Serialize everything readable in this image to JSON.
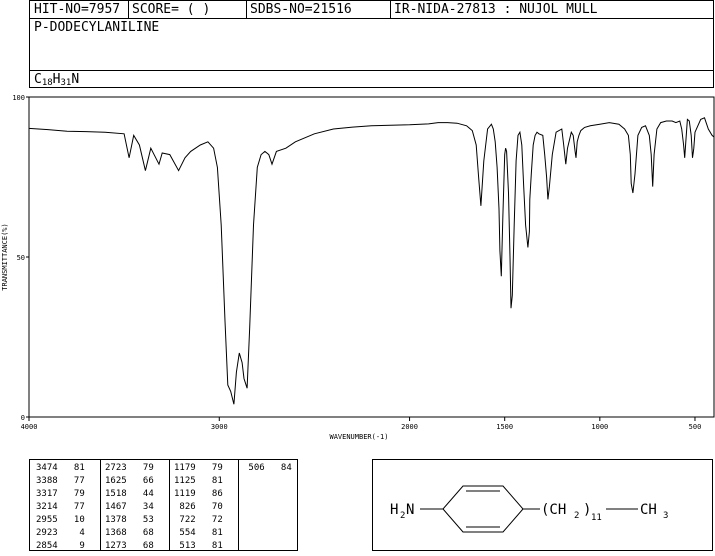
{
  "header": {
    "hit_no": "HIT-NO=7957",
    "score": "SCORE=  (   )",
    "sdbs_no": "SDBS-NO=21516",
    "ir_nida": "IR-NIDA-27813 : NUJOL MULL",
    "compound_name": "P-DODECYLANILINE",
    "formula_c": "C",
    "formula_c_count": "18",
    "formula_h": "H",
    "formula_h_count": "31",
    "formula_n": "N"
  },
  "structure": {
    "amine": "H",
    "amine_sub": "2",
    "amine_n": "N",
    "chain_open": "(CH",
    "chain_sub": "2",
    "chain_close": ")",
    "chain_count": "11",
    "terminal": "CH",
    "terminal_sub": "3"
  },
  "peak_table": {
    "columns": [
      [
        [
          "3474",
          "81"
        ],
        [
          "3388",
          "77"
        ],
        [
          "3317",
          "79"
        ],
        [
          "3214",
          "77"
        ],
        [
          "2955",
          "10"
        ],
        [
          "2923",
          "4"
        ],
        [
          "2854",
          "9"
        ]
      ],
      [
        [
          "2723",
          "79"
        ],
        [
          "1625",
          "66"
        ],
        [
          "1518",
          "44"
        ],
        [
          "1467",
          "34"
        ],
        [
          "1378",
          "53"
        ],
        [
          "1368",
          "68"
        ],
        [
          "1273",
          "68"
        ]
      ],
      [
        [
          "1179",
          "79"
        ],
        [
          "1125",
          "81"
        ],
        [
          "1119",
          "86"
        ],
        [
          "826",
          "70"
        ],
        [
          "722",
          "72"
        ],
        [
          "554",
          "81"
        ],
        [
          "513",
          "81"
        ]
      ],
      [
        [
          "506",
          "84"
        ]
      ]
    ]
  },
  "chart_data": {
    "type": "line",
    "title": "",
    "xlabel": "WAVENUMBER(-1)",
    "ylabel": "TRANSMITTANCE(%)",
    "xlim": [
      4000,
      400
    ],
    "ylim": [
      0,
      100
    ],
    "x_ticks": [
      4000,
      3000,
      2000,
      1500,
      1000,
      500
    ],
    "y_ticks": [
      0,
      50,
      100
    ],
    "grid": false,
    "series": [
      {
        "x": [
          4000,
          3900,
          3800,
          3700,
          3600,
          3500,
          3474,
          3450,
          3420,
          3388,
          3360,
          3317,
          3300,
          3260,
          3214,
          3180,
          3150,
          3100,
          3060,
          3030,
          3010,
          2990,
          2970,
          2955,
          2940,
          2923,
          2910,
          2895,
          2880,
          2870,
          2854,
          2840,
          2820,
          2800,
          2780,
          2760,
          2740,
          2723,
          2700,
          2650,
          2600,
          2500,
          2400,
          2300,
          2200,
          2100,
          2000,
          1900,
          1850,
          1800,
          1750,
          1700,
          1670,
          1650,
          1637,
          1625,
          1610,
          1590,
          1570,
          1560,
          1550,
          1540,
          1530,
          1525,
          1518,
          1510,
          1500,
          1495,
          1490,
          1480,
          1472,
          1467,
          1460,
          1450,
          1440,
          1430,
          1420,
          1410,
          1400,
          1390,
          1378,
          1370,
          1368,
          1360,
          1350,
          1340,
          1330,
          1320,
          1300,
          1290,
          1280,
          1273,
          1265,
          1250,
          1230,
          1200,
          1190,
          1179,
          1170,
          1150,
          1140,
          1130,
          1125,
          1119,
          1110,
          1100,
          1080,
          1050,
          1000,
          950,
          900,
          870,
          850,
          840,
          835,
          826,
          815,
          800,
          780,
          760,
          740,
          730,
          722,
          715,
          700,
          680,
          650,
          620,
          600,
          580,
          570,
          560,
          554,
          548,
          540,
          530,
          520,
          513,
          508,
          506,
          500,
          470,
          450,
          430,
          410,
          400
        ],
        "y": [
          90.2,
          89.8,
          89.3,
          89.2,
          89.0,
          88.5,
          81,
          88.0,
          85.0,
          77,
          84.0,
          79,
          82.5,
          82.0,
          77,
          81.0,
          83.0,
          85.0,
          86.0,
          84.0,
          78.0,
          60.0,
          30.0,
          10,
          8.0,
          4,
          14.0,
          20.0,
          17.0,
          12.0,
          9,
          28.0,
          60.0,
          78.0,
          82.0,
          83.0,
          82.0,
          79,
          83.0,
          84.0,
          86.0,
          88.5,
          90.0,
          90.6,
          91.0,
          91.2,
          91.3,
          91.6,
          92.0,
          92.0,
          91.8,
          91.0,
          89.5,
          85.0,
          75.0,
          66,
          80.0,
          90.0,
          91.5,
          90.0,
          86.0,
          78.0,
          65.0,
          52.0,
          44,
          62.0,
          82.0,
          84.0,
          83.0,
          70.0,
          50.0,
          34,
          38.0,
          60.0,
          80.0,
          88.0,
          89.0,
          85.0,
          72.0,
          60.0,
          53,
          58.0,
          68,
          76.0,
          85.0,
          88.0,
          89.0,
          88.5,
          88.0,
          82.0,
          75.0,
          68,
          72.0,
          82.0,
          89.0,
          90.0,
          85.0,
          79,
          84.0,
          89.0,
          88.0,
          83.0,
          81,
          86,
          88.0,
          89.5,
          90.5,
          91.0,
          91.5,
          92.0,
          91.5,
          90.0,
          88.0,
          82.0,
          73.0,
          70,
          76.0,
          88.0,
          90.5,
          91.0,
          88.0,
          82.0,
          72,
          82.0,
          90.0,
          92.0,
          92.5,
          92.5,
          92.0,
          92.5,
          90.0,
          85.0,
          81,
          86.0,
          93.0,
          92.5,
          88.0,
          81,
          83.0,
          84,
          89.0,
          93.0,
          93.5,
          90.0,
          88.0,
          87.5
        ]
      }
    ]
  }
}
